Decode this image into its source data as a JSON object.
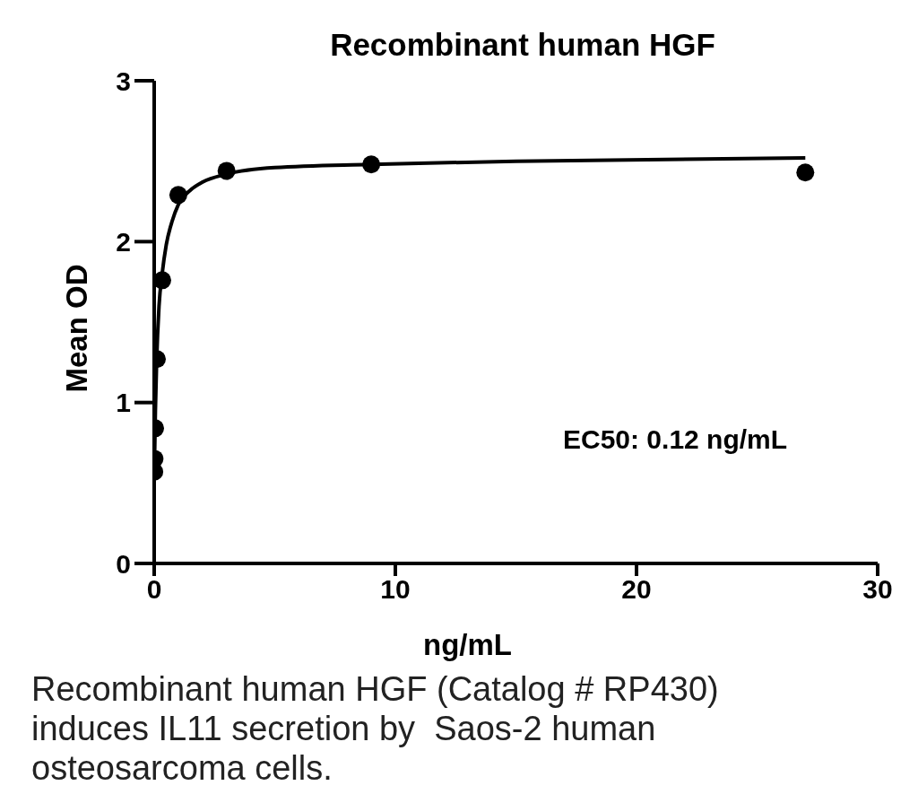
{
  "chart_data": {
    "type": "scatter",
    "title": "Recombinant human HGF",
    "xlabel": "ng/mL",
    "ylabel": "Mean OD",
    "xlim": [
      0,
      30
    ],
    "xticks": [
      0,
      10,
      20,
      30
    ],
    "ylim": [
      0,
      3
    ],
    "yticks": [
      0,
      1,
      2,
      3
    ],
    "grid": false,
    "legend": false,
    "marker": "circle",
    "series": [
      {
        "color": "#000000",
        "x": [
          0.004,
          0.012,
          0.037,
          0.111,
          0.333,
          1,
          3,
          9,
          27
        ],
        "values": [
          0.57,
          0.65,
          0.84,
          1.27,
          1.76,
          2.29,
          2.44,
          2.48,
          2.43
        ]
      },
      {
        "type": "line",
        "color": "#000000",
        "marker": "none",
        "line_style": "solid",
        "x": [
          0.01,
          0.05,
          0.1,
          0.2,
          0.33,
          0.5,
          0.75,
          1,
          1.5,
          2,
          3,
          5,
          9,
          15,
          27
        ],
        "values": [
          0.6,
          0.95,
          1.25,
          1.6,
          1.8,
          1.98,
          2.13,
          2.23,
          2.32,
          2.37,
          2.42,
          2.46,
          2.48,
          2.5,
          2.52
        ]
      }
    ],
    "annotations": [
      "EC50: 0.12 ng/mL",
      "Recombinant human HGF (Catalog # RP430) induces IL11 secretion by  Saos-2 human osteosarcoma cells."
    ]
  }
}
